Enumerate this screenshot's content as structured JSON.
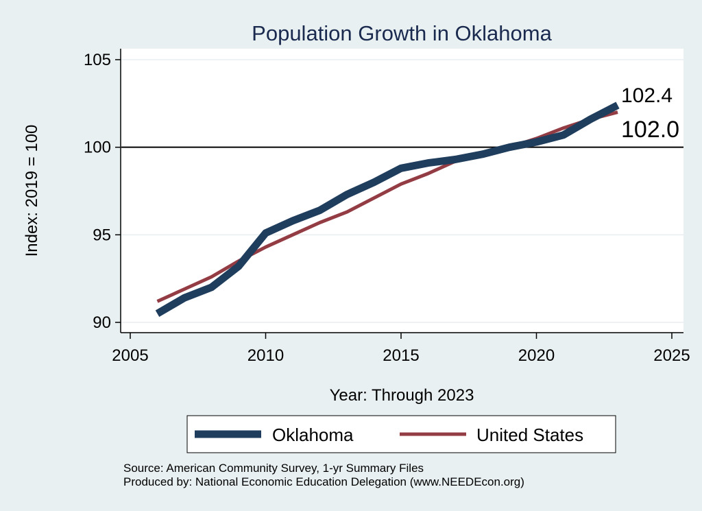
{
  "chart_data": {
    "type": "line",
    "title": "Population Growth in Oklahoma",
    "xlabel": "Year: Through 2023",
    "ylabel": "Index: 2019 = 100",
    "xlim": [
      2005,
      2025
    ],
    "ylim": [
      90,
      105
    ],
    "x_ticks": [
      2005,
      2010,
      2015,
      2020,
      2025
    ],
    "y_ticks": [
      90,
      95,
      100,
      105
    ],
    "reference_line": 100,
    "x": [
      2006,
      2007,
      2008,
      2009,
      2010,
      2011,
      2012,
      2013,
      2014,
      2015,
      2016,
      2017,
      2018,
      2019,
      2020,
      2021,
      2022,
      2023
    ],
    "series": [
      {
        "name": "Oklahoma",
        "color": "#1f3d5c",
        "values": [
          90.5,
          91.4,
          92.0,
          93.2,
          95.1,
          95.8,
          96.4,
          97.3,
          98.0,
          98.8,
          99.1,
          99.3,
          99.6,
          100.0,
          100.3,
          100.7,
          101.6,
          102.4
        ],
        "end_label": "102.4"
      },
      {
        "name": "United States",
        "color": "#933c44",
        "values": [
          91.2,
          91.9,
          92.6,
          93.5,
          94.3,
          95.0,
          95.7,
          96.3,
          97.1,
          97.9,
          98.5,
          99.2,
          99.6,
          100.0,
          100.5,
          101.1,
          101.6,
          102.0
        ],
        "end_label": "102.0"
      }
    ],
    "legend_position": "bottom",
    "source_lines": [
      "Source: American Community Survey, 1-yr Summary Files",
      "Produced by: National Economic Education Delegation (www.NEEDEcon.org)"
    ]
  }
}
